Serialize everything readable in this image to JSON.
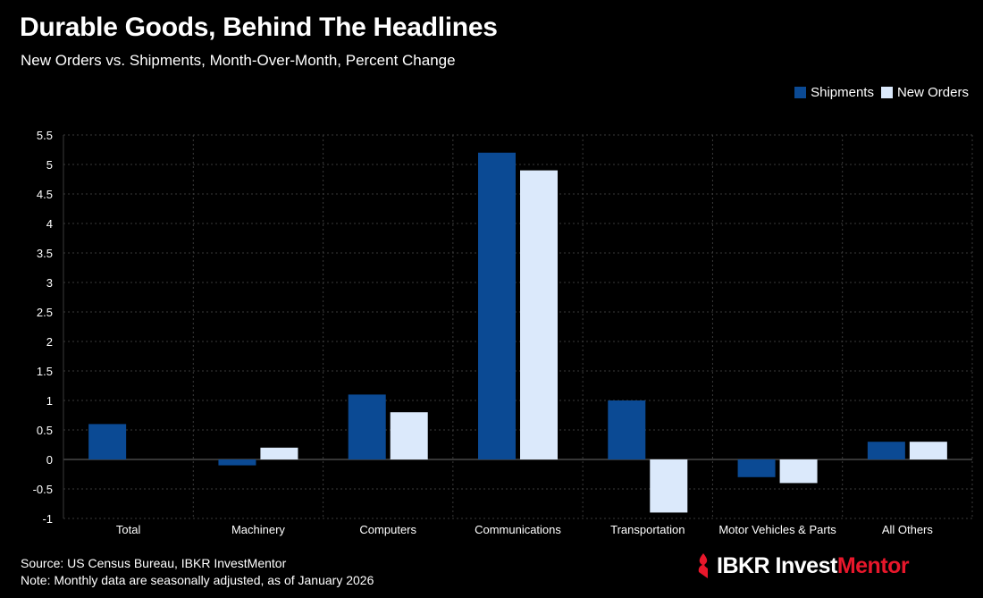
{
  "title": "Durable Goods, Behind The Headlines",
  "subtitle": "New Orders vs. Shipments, Month-Over-Month, Percent Change",
  "footer": {
    "source": "Source: US Census Bureau, IBKR InvestMentor",
    "note": "Note: Monthly data are seasonally adjusted, as of January 2026"
  },
  "logo": {
    "icon": "ibkr-flame-icon",
    "text_main": "IBKR Invest",
    "text_brand": "Mentor"
  },
  "colors": {
    "shipments": "#0b4a94",
    "new_orders": "#dbe9fb",
    "brand_red": "#e8172b",
    "grid": "#3a3a3a"
  },
  "chart_data": {
    "type": "bar",
    "title": "Durable Goods, Behind The Headlines",
    "xlabel": "",
    "ylabel": "",
    "ylim": [
      -1,
      5.5
    ],
    "yticks": [
      5.5,
      5,
      4.5,
      4,
      3.5,
      3,
      2.5,
      2,
      1.5,
      1,
      0.5,
      0,
      -0.5,
      -1
    ],
    "legend_position": "top-right",
    "categories": [
      "Total",
      "Machinery",
      "Computers",
      "Communications",
      "Transportation",
      "Motor Vehicles & Parts",
      "All Others"
    ],
    "series": [
      {
        "name": "Shipments",
        "values": [
          0.6,
          -0.1,
          1.1,
          5.2,
          1.0,
          -0.3,
          0.3
        ]
      },
      {
        "name": "New Orders",
        "values": [
          0.0,
          0.2,
          0.8,
          4.9,
          -0.9,
          -0.4,
          0.3
        ]
      }
    ]
  }
}
